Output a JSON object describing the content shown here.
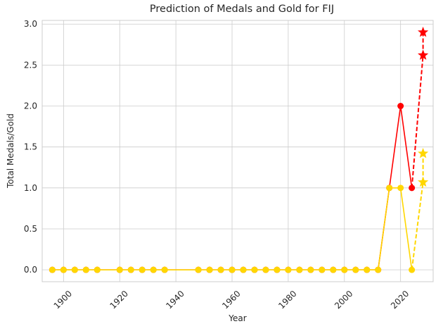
{
  "chart_data": {
    "type": "line",
    "title": "Prediction of Medals and Gold for FIJ",
    "xlabel": "Year",
    "ylabel": "Total Medals/Gold",
    "xlim": [
      1892.4,
      2031.6
    ],
    "ylim": [
      -0.145,
      3.045
    ],
    "x_ticks": [
      1900,
      1920,
      1940,
      1960,
      1980,
      2000,
      2020
    ],
    "y_ticks": [
      0.0,
      0.5,
      1.0,
      1.5,
      2.0,
      2.5,
      3.0
    ],
    "y_tick_labels": [
      "0.0",
      "0.5",
      "1.0",
      "1.5",
      "2.0",
      "2.5",
      "3.0"
    ],
    "grid": true,
    "legend": false,
    "series": [
      {
        "kind": "total-medals-history",
        "color": "#ff0000",
        "marker": "circle",
        "line_style": "solid",
        "x": [
          1896,
          1900,
          1904,
          1908,
          1912,
          1920,
          1924,
          1928,
          1932,
          1936,
          1948,
          1952,
          1956,
          1960,
          1964,
          1968,
          1972,
          1976,
          1980,
          1984,
          1988,
          1992,
          1996,
          2000,
          2004,
          2008,
          2012,
          2016,
          2020,
          2024
        ],
        "y": [
          0,
          0,
          0,
          0,
          0,
          0,
          0,
          0,
          0,
          0,
          0,
          0,
          0,
          0,
          0,
          0,
          0,
          0,
          0,
          0,
          0,
          0,
          0,
          0,
          0,
          0,
          0,
          1,
          2,
          1
        ]
      },
      {
        "kind": "total-medals-prediction",
        "color": "#ff0000",
        "marker": "star",
        "line_style": "dashed",
        "x": [
          2024,
          2028,
          2028
        ],
        "y": [
          1,
          2.62,
          2.9
        ]
      },
      {
        "kind": "gold-history",
        "color": "#ffd700",
        "marker": "circle",
        "line_style": "solid",
        "x": [
          1896,
          1900,
          1904,
          1908,
          1912,
          1920,
          1924,
          1928,
          1932,
          1936,
          1948,
          1952,
          1956,
          1960,
          1964,
          1968,
          1972,
          1976,
          1980,
          1984,
          1988,
          1992,
          1996,
          2000,
          2004,
          2008,
          2012,
          2016,
          2020,
          2024
        ],
        "y": [
          0,
          0,
          0,
          0,
          0,
          0,
          0,
          0,
          0,
          0,
          0,
          0,
          0,
          0,
          0,
          0,
          0,
          0,
          0,
          0,
          0,
          0,
          0,
          0,
          0,
          0,
          0,
          1,
          1,
          0
        ]
      },
      {
        "kind": "gold-prediction",
        "color": "#ffd700",
        "marker": "star",
        "line_style": "dashed",
        "x": [
          2024,
          2028,
          2028
        ],
        "y": [
          0,
          1.07,
          1.42
        ]
      }
    ]
  }
}
